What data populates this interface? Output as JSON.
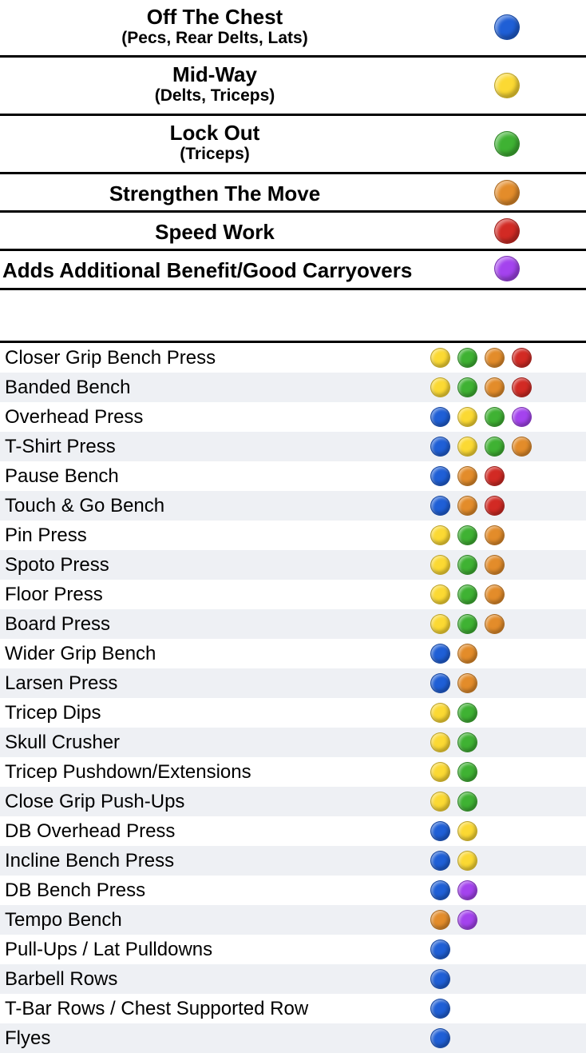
{
  "legend": [
    {
      "title": "Off The Chest",
      "subtitle": "(Pecs, Rear Delts, Lats)",
      "color": "blue"
    },
    {
      "title": "Mid-Way",
      "subtitle": "(Delts, Triceps)",
      "color": "yellow"
    },
    {
      "title": "Lock Out",
      "subtitle": "(Triceps)",
      "color": "green"
    },
    {
      "title": "Strengthen The Move",
      "subtitle": "",
      "color": "orange"
    },
    {
      "title": "Speed Work",
      "subtitle": "",
      "color": "red"
    },
    {
      "title": "Adds Additional Benefit/Good Carryovers",
      "subtitle": "",
      "color": "purple"
    }
  ],
  "colors": {
    "blue": "#1f5fd6",
    "yellow": "#fbd933",
    "green": "#3fb233",
    "orange": "#e38c2a",
    "red": "#d22a24",
    "purple": "#a443ee"
  },
  "exercises": [
    {
      "name": "Closer Grip Bench Press",
      "tags": [
        "yellow",
        "green",
        "orange",
        "red"
      ]
    },
    {
      "name": "Banded Bench",
      "tags": [
        "yellow",
        "green",
        "orange",
        "red"
      ]
    },
    {
      "name": "Overhead Press",
      "tags": [
        "blue",
        "yellow",
        "green",
        "purple"
      ]
    },
    {
      "name": "T-Shirt Press",
      "tags": [
        "blue",
        "yellow",
        "green",
        "orange"
      ]
    },
    {
      "name": "Pause Bench",
      "tags": [
        "blue",
        "orange",
        "red"
      ]
    },
    {
      "name": "Touch & Go Bench",
      "tags": [
        "blue",
        "orange",
        "red"
      ]
    },
    {
      "name": "Pin Press",
      "tags": [
        "yellow",
        "green",
        "orange"
      ]
    },
    {
      "name": "Spoto Press",
      "tags": [
        "yellow",
        "green",
        "orange"
      ]
    },
    {
      "name": "Floor Press",
      "tags": [
        "yellow",
        "green",
        "orange"
      ]
    },
    {
      "name": "Board Press",
      "tags": [
        "yellow",
        "green",
        "orange"
      ]
    },
    {
      "name": "Wider Grip Bench",
      "tags": [
        "blue",
        "orange"
      ]
    },
    {
      "name": "Larsen Press",
      "tags": [
        "blue",
        "orange"
      ]
    },
    {
      "name": "Tricep Dips",
      "tags": [
        "yellow",
        "green"
      ]
    },
    {
      "name": "Skull Crusher",
      "tags": [
        "yellow",
        "green"
      ]
    },
    {
      "name": "Tricep Pushdown/Extensions",
      "tags": [
        "yellow",
        "green"
      ]
    },
    {
      "name": "Close Grip Push-Ups",
      "tags": [
        "yellow",
        "green"
      ]
    },
    {
      "name": "DB Overhead Press",
      "tags": [
        "blue",
        "yellow"
      ]
    },
    {
      "name": "Incline Bench Press",
      "tags": [
        "blue",
        "yellow"
      ]
    },
    {
      "name": "DB Bench Press",
      "tags": [
        "blue",
        "purple"
      ]
    },
    {
      "name": "Tempo Bench",
      "tags": [
        "orange",
        "purple"
      ]
    },
    {
      "name": "Pull-Ups / Lat Pulldowns",
      "tags": [
        "blue"
      ]
    },
    {
      "name": "Barbell Rows",
      "tags": [
        "blue"
      ]
    },
    {
      "name": "T-Bar Rows / Chest Supported Row",
      "tags": [
        "blue"
      ]
    },
    {
      "name": "Flyes",
      "tags": [
        "blue"
      ]
    }
  ]
}
